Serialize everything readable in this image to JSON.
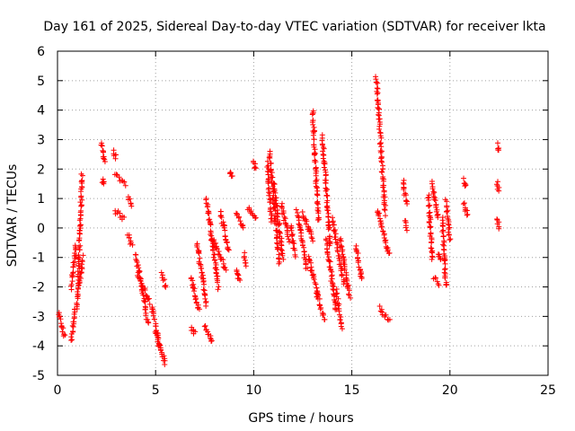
{
  "chart_data": {
    "type": "scatter",
    "title": "Day 161 of 2025, Sidereal Day-to-day VTEC variation (SDTVAR) for receiver lkta",
    "xlabel": "GPS time / hours",
    "ylabel": "SDTVAR / TECUs",
    "xlim": [
      0,
      25
    ],
    "ylim": [
      -5,
      6
    ],
    "xticks": [
      "0",
      "5",
      "10",
      "15",
      "20",
      "25"
    ],
    "yticks": [
      "-5",
      "-4",
      "-3",
      "-2",
      "-1",
      "0",
      "1",
      "2",
      "3",
      "4",
      "5",
      "6"
    ],
    "grid": true,
    "marker": "+",
    "color": "#ff0000",
    "segments": [
      {
        "x0": 0.05,
        "x1": 0.35,
        "y0": -2.9,
        "y1": -3.7
      },
      {
        "x0": 0.7,
        "x1": 0.9,
        "y0": -3.8,
        "y1": -2.7
      },
      {
        "x0": 0.7,
        "x1": 0.95,
        "y0": -2.0,
        "y1": -0.6
      },
      {
        "x0": 1.0,
        "x1": 1.25,
        "y0": -2.8,
        "y1": 1.8
      },
      {
        "x0": 1.1,
        "x1": 1.3,
        "y0": -2.0,
        "y1": -1.0
      },
      {
        "x0": 2.25,
        "x1": 2.4,
        "y0": 2.9,
        "y1": 2.2
      },
      {
        "x0": 2.3,
        "x1": 2.35,
        "y0": 1.6,
        "y1": 1.5
      },
      {
        "x0": 2.85,
        "x1": 3.0,
        "y0": 2.6,
        "y1": 2.4
      },
      {
        "x0": 2.9,
        "x1": 3.5,
        "y0": 1.8,
        "y1": 1.5
      },
      {
        "x0": 2.9,
        "x1": 3.4,
        "y0": 0.6,
        "y1": 0.3
      },
      {
        "x0": 3.6,
        "x1": 3.8,
        "y0": 1.1,
        "y1": 0.8
      },
      {
        "x0": 3.6,
        "x1": 3.8,
        "y0": -0.2,
        "y1": -0.6
      },
      {
        "x0": 4.0,
        "x1": 4.6,
        "y0": -0.9,
        "y1": -3.2
      },
      {
        "x0": 4.1,
        "x1": 4.7,
        "y0": -1.6,
        "y1": -2.5
      },
      {
        "x0": 4.8,
        "x1": 5.2,
        "y0": -2.6,
        "y1": -4.0
      },
      {
        "x0": 5.0,
        "x1": 5.5,
        "y0": -3.6,
        "y1": -4.6
      },
      {
        "x0": 5.3,
        "x1": 5.5,
        "y0": -1.6,
        "y1": -2.0
      },
      {
        "x0": 6.8,
        "x1": 7.0,
        "y0": -3.4,
        "y1": -3.6
      },
      {
        "x0": 6.8,
        "x1": 7.2,
        "y0": -1.7,
        "y1": -2.8
      },
      {
        "x0": 7.1,
        "x1": 7.6,
        "y0": -0.5,
        "y1": -2.6
      },
      {
        "x0": 7.5,
        "x1": 7.9,
        "y0": -3.3,
        "y1": -3.9
      },
      {
        "x0": 7.6,
        "x1": 8.2,
        "y0": 1.0,
        "y1": -2.0
      },
      {
        "x0": 7.9,
        "x1": 8.6,
        "y0": -0.4,
        "y1": -1.4
      },
      {
        "x0": 8.3,
        "x1": 8.7,
        "y0": 0.6,
        "y1": -0.8
      },
      {
        "x0": 8.8,
        "x1": 8.9,
        "y0": 1.9,
        "y1": 1.7
      },
      {
        "x0": 9.1,
        "x1": 9.3,
        "y0": -1.4,
        "y1": -1.8
      },
      {
        "x0": 9.1,
        "x1": 9.5,
        "y0": 0.5,
        "y1": 0.0
      },
      {
        "x0": 9.5,
        "x1": 9.6,
        "y0": -0.9,
        "y1": -1.3
      },
      {
        "x0": 9.7,
        "x1": 10.1,
        "y0": 0.7,
        "y1": 0.3
      },
      {
        "x0": 10.0,
        "x1": 10.1,
        "y0": 2.3,
        "y1": 2.0
      },
      {
        "x0": 10.7,
        "x1": 10.9,
        "y0": 2.2,
        "y1": 0.2
      },
      {
        "x0": 10.8,
        "x1": 11.3,
        "y0": 2.6,
        "y1": -1.2
      },
      {
        "x0": 11.0,
        "x1": 11.5,
        "y0": 1.6,
        "y1": -1.0
      },
      {
        "x0": 11.4,
        "x1": 11.8,
        "y0": 0.8,
        "y1": -0.4
      },
      {
        "x0": 11.9,
        "x1": 12.1,
        "y0": 0.1,
        "y1": -0.9
      },
      {
        "x0": 12.2,
        "x1": 12.7,
        "y0": 0.6,
        "y1": -1.4
      },
      {
        "x0": 12.5,
        "x1": 13.0,
        "y0": 0.5,
        "y1": -0.4
      },
      {
        "x0": 12.8,
        "x1": 13.3,
        "y0": -1.0,
        "y1": -2.3
      },
      {
        "x0": 13.0,
        "x1": 13.3,
        "y0": 4.0,
        "y1": 0.2
      },
      {
        "x0": 13.2,
        "x1": 13.6,
        "y0": -2.2,
        "y1": -3.1
      },
      {
        "x0": 13.5,
        "x1": 13.9,
        "y0": 3.1,
        "y1": -0.6
      },
      {
        "x0": 13.7,
        "x1": 14.2,
        "y0": -0.4,
        "y1": -2.8
      },
      {
        "x0": 14.0,
        "x1": 14.6,
        "y0": 0.3,
        "y1": -1.9
      },
      {
        "x0": 14.2,
        "x1": 14.5,
        "y0": -2.1,
        "y1": -3.4
      },
      {
        "x0": 14.4,
        "x1": 14.9,
        "y0": -0.4,
        "y1": -2.3
      },
      {
        "x0": 15.2,
        "x1": 15.5,
        "y0": -0.6,
        "y1": -1.8
      },
      {
        "x0": 16.2,
        "x1": 16.35,
        "y0": 5.1,
        "y1": 4.8
      },
      {
        "x0": 16.3,
        "x1": 16.7,
        "y0": 4.7,
        "y1": 0.5
      },
      {
        "x0": 16.3,
        "x1": 16.9,
        "y0": 0.6,
        "y1": -0.9
      },
      {
        "x0": 16.4,
        "x1": 16.9,
        "y0": -2.7,
        "y1": -3.1
      },
      {
        "x0": 17.6,
        "x1": 17.8,
        "y0": 1.6,
        "y1": 0.8
      },
      {
        "x0": 17.7,
        "x1": 17.8,
        "y0": 0.2,
        "y1": 0.0
      },
      {
        "x0": 18.9,
        "x1": 19.1,
        "y0": 1.1,
        "y1": -1.1
      },
      {
        "x0": 19.1,
        "x1": 19.4,
        "y0": 1.5,
        "y1": 0.3
      },
      {
        "x0": 19.2,
        "x1": 19.4,
        "y0": -1.7,
        "y1": -1.9
      },
      {
        "x0": 19.4,
        "x1": 19.5,
        "y0": -0.8,
        "y1": -1.1
      },
      {
        "x0": 19.6,
        "x1": 19.8,
        "y0": 0.3,
        "y1": -2.0
      },
      {
        "x0": 19.8,
        "x1": 20.0,
        "y0": 0.9,
        "y1": -0.4
      },
      {
        "x0": 20.7,
        "x1": 20.8,
        "y0": 1.6,
        "y1": 1.4
      },
      {
        "x0": 20.7,
        "x1": 20.9,
        "y0": 0.8,
        "y1": 0.4
      },
      {
        "x0": 22.4,
        "x1": 22.5,
        "y0": 2.8,
        "y1": 2.6
      },
      {
        "x0": 22.4,
        "x1": 22.5,
        "y0": 1.5,
        "y1": 1.3
      },
      {
        "x0": 22.4,
        "x1": 22.5,
        "y0": 0.3,
        "y1": 0.0
      }
    ]
  }
}
